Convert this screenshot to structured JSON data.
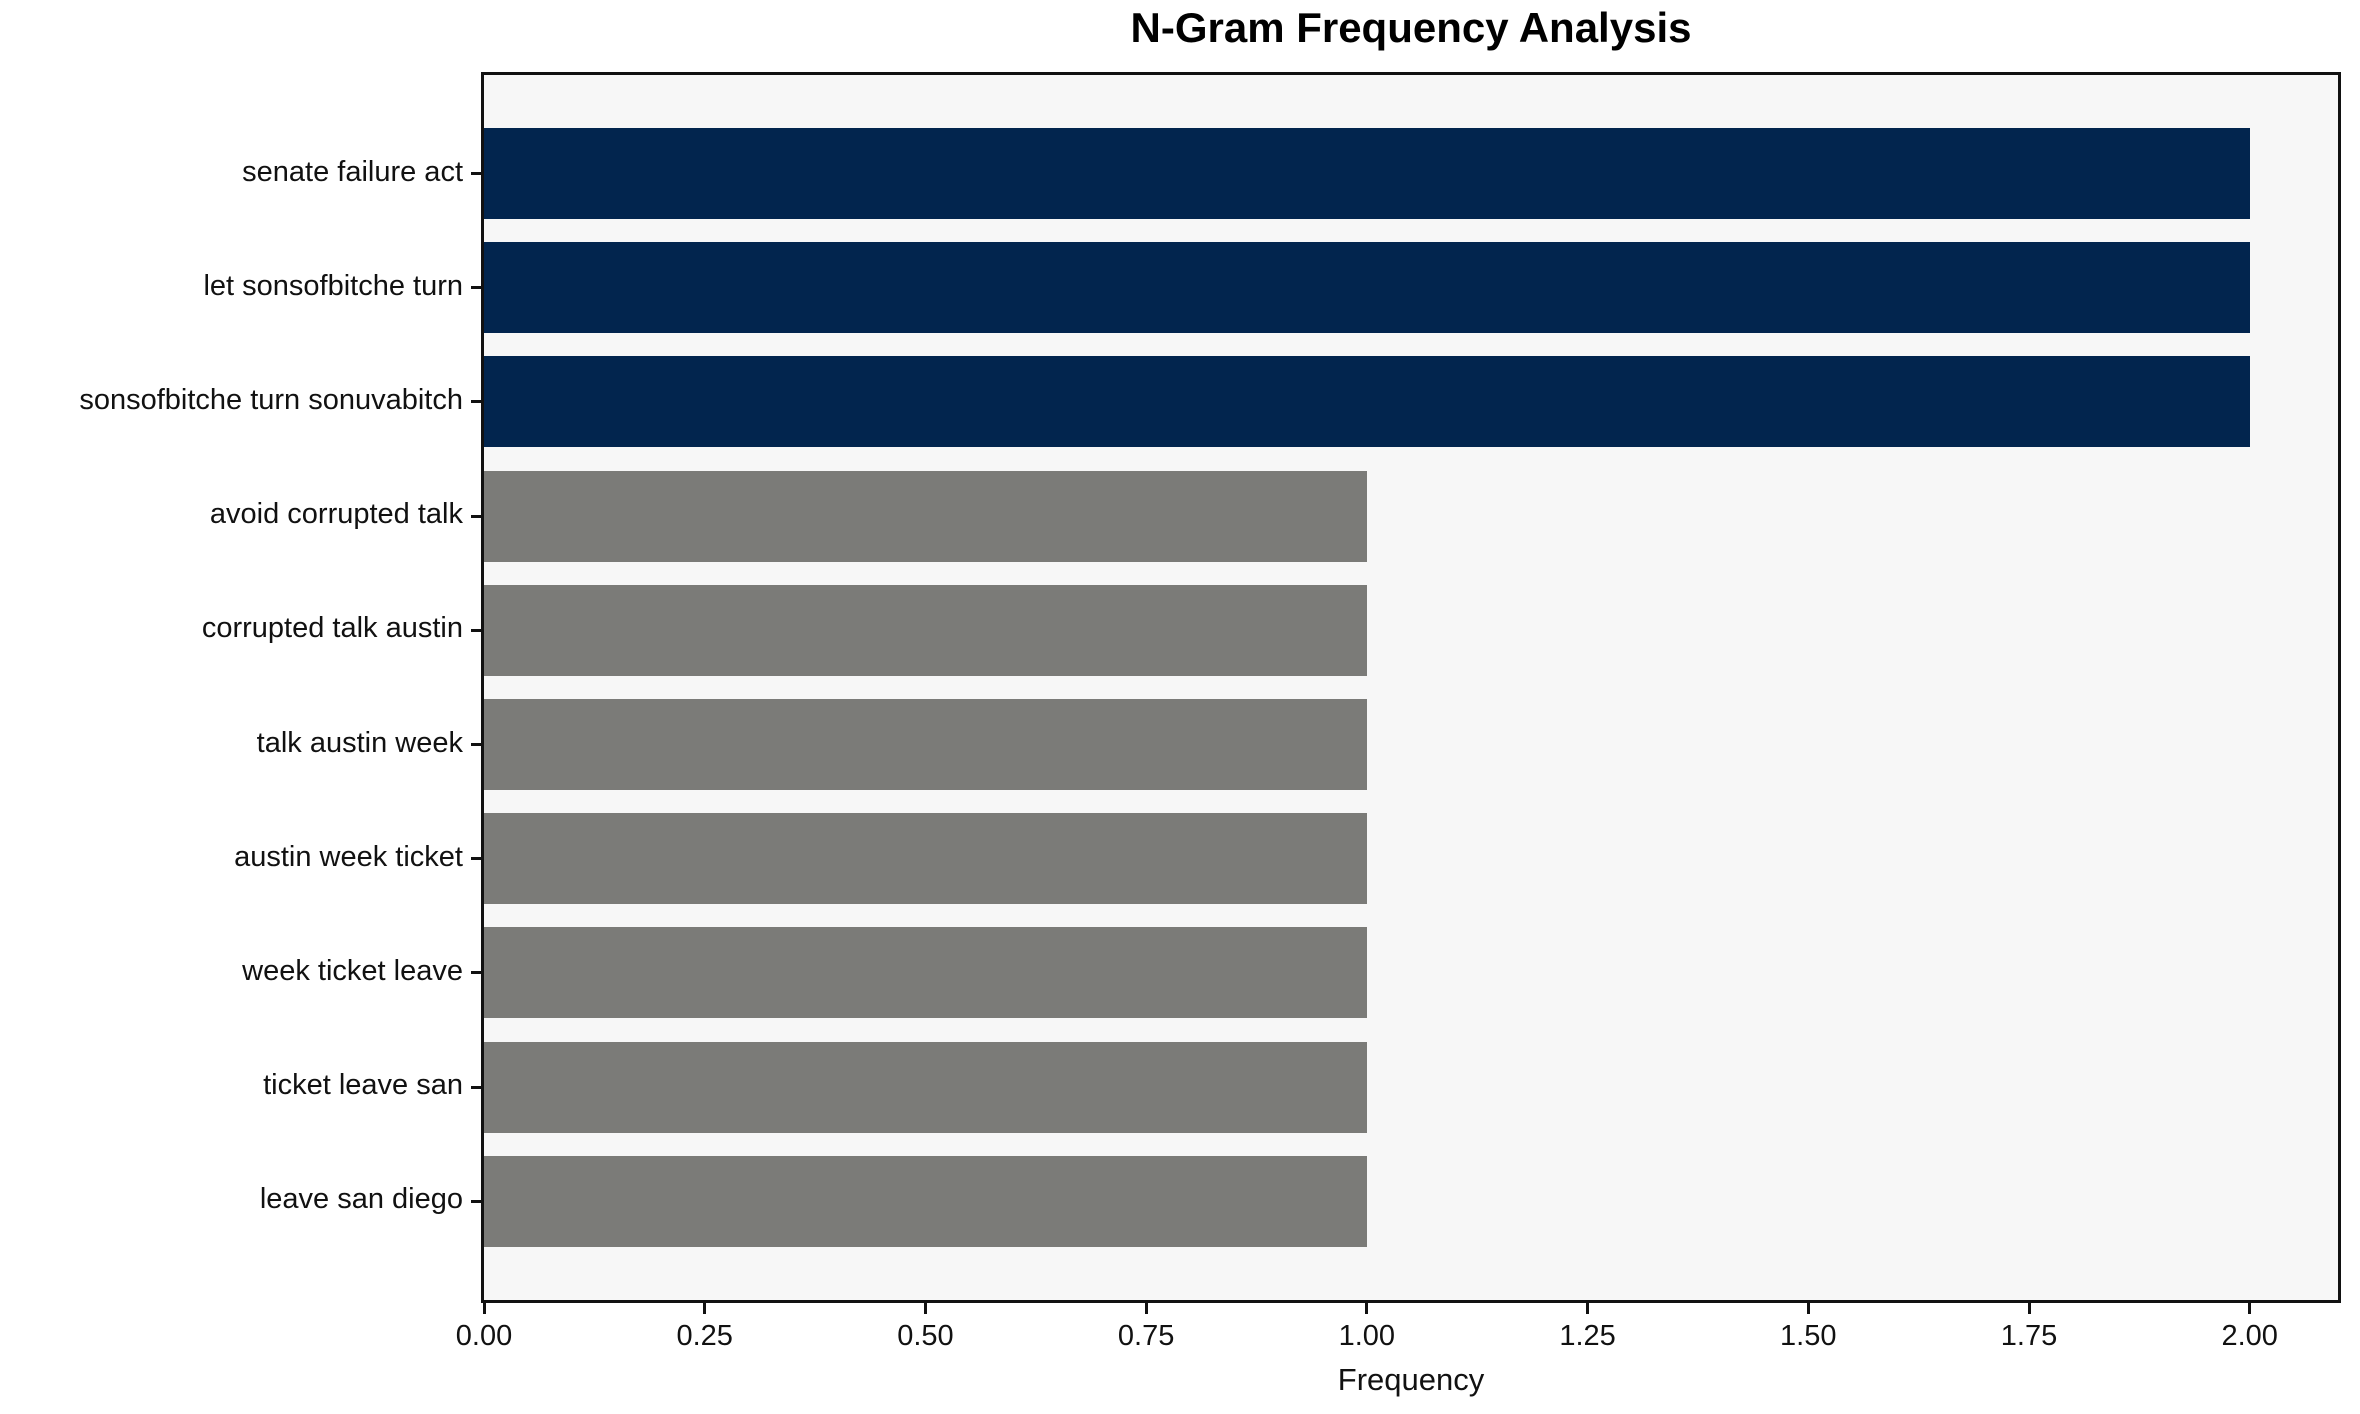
{
  "figure": {
    "title": "N-Gram Frequency Analysis",
    "background_color": "#ffffff",
    "plot_background_color": "#f7f7f7",
    "spine_color": "#111111",
    "text_color": "#111111"
  },
  "colors": {
    "highlight_bar": "#02254e",
    "default_bar": "#7b7b78"
  },
  "chart_data": {
    "type": "bar",
    "orientation": "horizontal",
    "title": "N-Gram Frequency Analysis",
    "xlabel": "Frequency",
    "ylabel": "",
    "categories": [
      "senate failure act",
      "let sonsofbitche turn",
      "sonsofbitche turn sonuvabitch",
      "avoid corrupted talk",
      "corrupted talk austin",
      "talk austin week",
      "austin week ticket",
      "week ticket leave",
      "ticket leave san",
      "leave san diego"
    ],
    "values": [
      2,
      2,
      2,
      1,
      1,
      1,
      1,
      1,
      1,
      1
    ],
    "bar_colors": [
      "#02254e",
      "#02254e",
      "#02254e",
      "#7b7b78",
      "#7b7b78",
      "#7b7b78",
      "#7b7b78",
      "#7b7b78",
      "#7b7b78",
      "#7b7b78"
    ],
    "xlim": [
      0,
      2.1
    ],
    "xticks": [
      "0.00",
      "0.25",
      "0.50",
      "0.75",
      "1.00",
      "1.25",
      "1.50",
      "1.75",
      "2.00"
    ],
    "grid": false,
    "legend": null
  }
}
